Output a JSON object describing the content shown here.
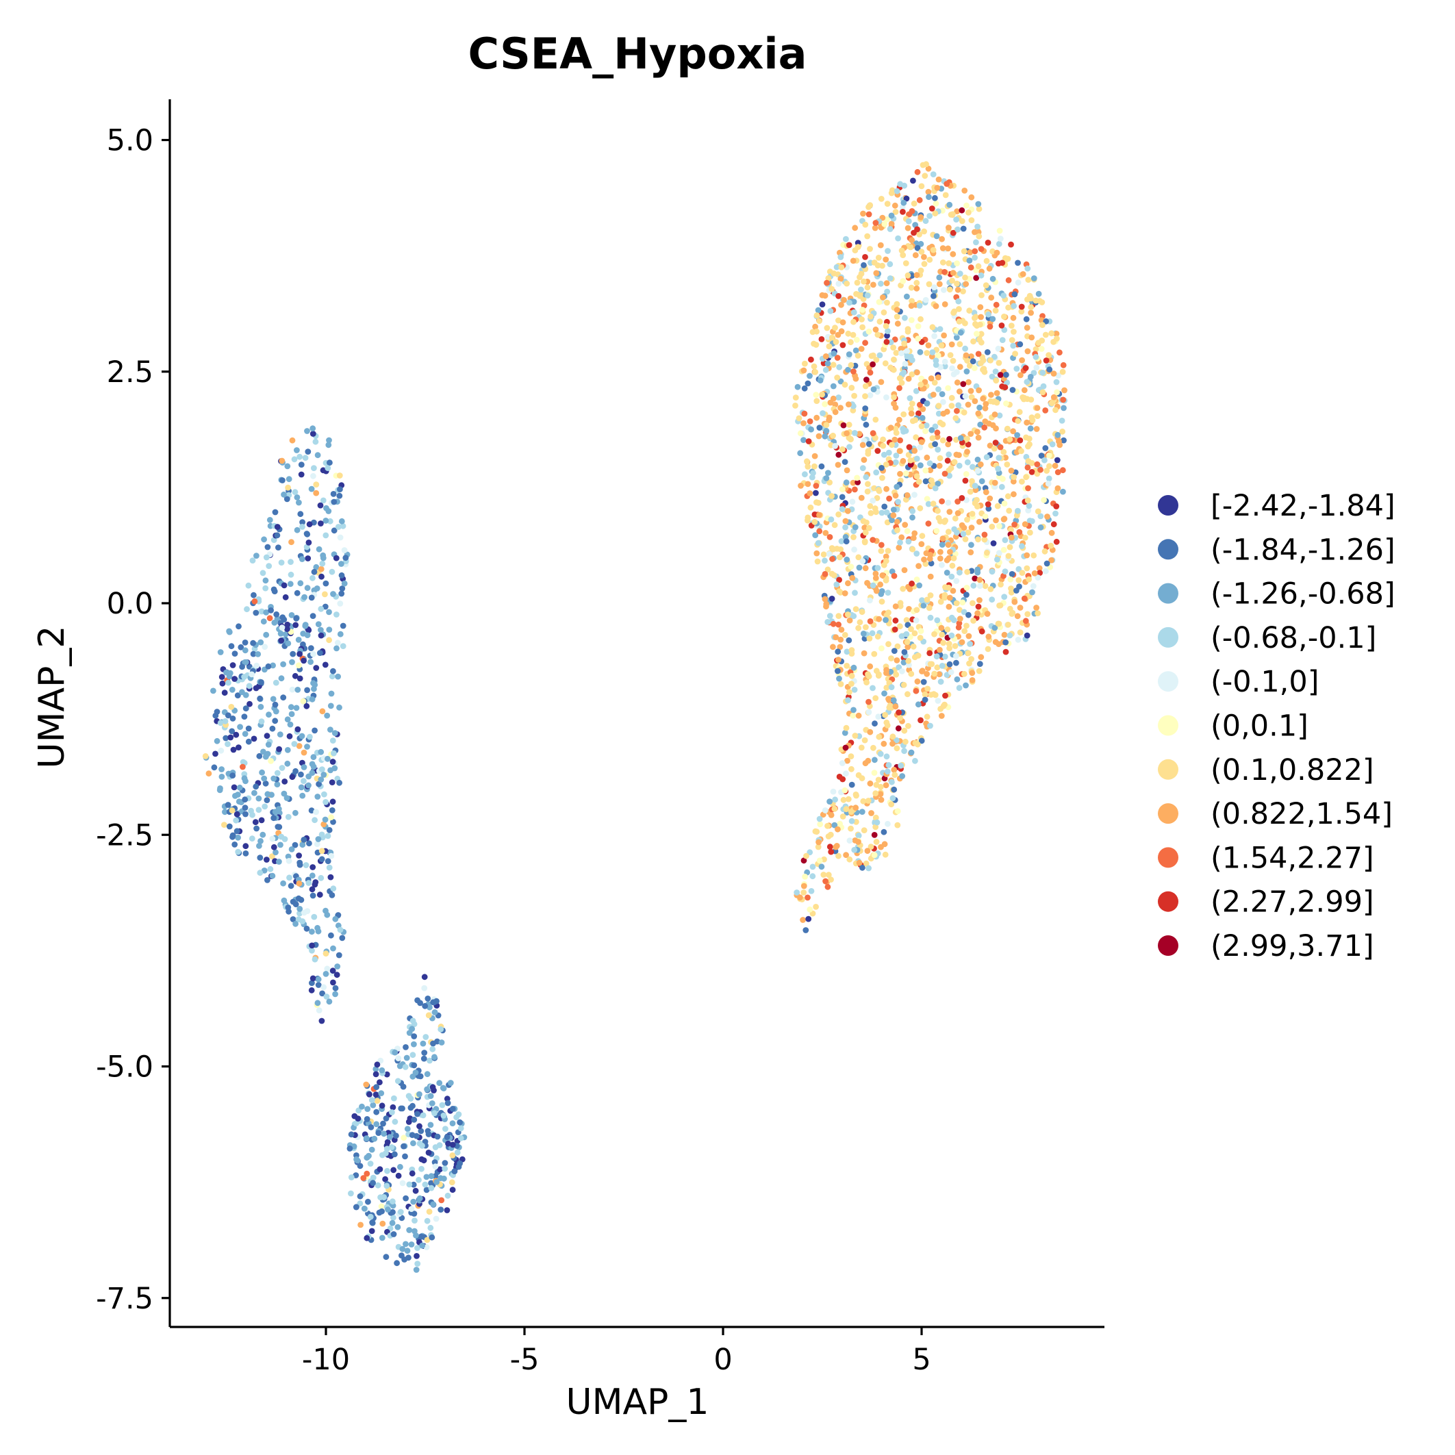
{
  "chart_data": {
    "type": "scatter",
    "title": "CSEA_Hypoxia",
    "xlabel": "UMAP_1",
    "ylabel": "UMAP_2",
    "xlim": [
      -14,
      9.6
    ],
    "ylim": [
      -7.8,
      5.45
    ],
    "x_ticks": [
      {
        "value": -10,
        "label": "-10"
      },
      {
        "value": -5,
        "label": "-5"
      },
      {
        "value": 0,
        "label": "0"
      },
      {
        "value": 5,
        "label": "5"
      }
    ],
    "y_ticks": [
      {
        "value": 5.0,
        "label": "5.0"
      },
      {
        "value": 2.5,
        "label": "2.5"
      },
      {
        "value": 0.0,
        "label": "0.0"
      },
      {
        "value": -2.5,
        "label": "-2.5"
      },
      {
        "value": -5.0,
        "label": "-5.0"
      },
      {
        "value": -7.5,
        "label": "-7.5"
      }
    ],
    "legend_position": "right",
    "legend": [
      {
        "label": "[-2.42,-1.84]",
        "color": "#313695"
      },
      {
        "label": "(-1.84,-1.26]",
        "color": "#4575b4"
      },
      {
        "label": "(-1.26,-0.68]",
        "color": "#74add1"
      },
      {
        "label": "(-0.68,-0.1]",
        "color": "#abd9e9"
      },
      {
        "label": "(-0.1,0]",
        "color": "#e0f3f8"
      },
      {
        "label": "(0,0.1]",
        "color": "#ffffbf"
      },
      {
        "label": "(0.1,0.822]",
        "color": "#fee090"
      },
      {
        "label": "(0.822,1.54]",
        "color": "#fdae61"
      },
      {
        "label": "(1.54,2.27]",
        "color": "#f46d43"
      },
      {
        "label": "(2.27,2.99]",
        "color": "#d73027"
      },
      {
        "label": "(2.99,3.71]",
        "color": "#a50026"
      }
    ],
    "clusters": [
      {
        "name": "upper-left cluster",
        "points_estimated": 700,
        "outline": [
          [
            -10.3,
            1.95
          ],
          [
            -9.9,
            1.9
          ],
          [
            -9.6,
            1.4
          ],
          [
            -9.4,
            0.8
          ],
          [
            -9.5,
            0.0
          ],
          [
            -9.6,
            -0.8
          ],
          [
            -9.5,
            -1.6
          ],
          [
            -9.75,
            -2.3
          ],
          [
            -9.85,
            -3.0
          ],
          [
            -9.5,
            -3.6
          ],
          [
            -9.8,
            -4.3
          ],
          [
            -10.2,
            -4.6
          ],
          [
            -10.6,
            -3.7
          ],
          [
            -11.2,
            -3.1
          ],
          [
            -12.1,
            -2.8
          ],
          [
            -12.8,
            -2.2
          ],
          [
            -13.1,
            -1.5
          ],
          [
            -12.9,
            -0.8
          ],
          [
            -12.2,
            0.0
          ],
          [
            -11.6,
            0.8
          ],
          [
            -11.2,
            1.5
          ],
          [
            -10.8,
            1.8
          ]
        ],
        "class_weights": [
          0.14,
          0.24,
          0.3,
          0.2,
          0.05,
          0.02,
          0.03,
          0.015,
          0.005,
          0,
          0
        ]
      },
      {
        "name": "lower-left cluster",
        "points_estimated": 420,
        "outline": [
          [
            -7.5,
            -4.0
          ],
          [
            -7.1,
            -4.4
          ],
          [
            -6.9,
            -5.1
          ],
          [
            -6.6,
            -5.6
          ],
          [
            -6.4,
            -5.8
          ],
          [
            -6.95,
            -6.6
          ],
          [
            -7.7,
            -7.2
          ],
          [
            -8.4,
            -7.1
          ],
          [
            -9.1,
            -6.8
          ],
          [
            -9.5,
            -6.2
          ],
          [
            -9.3,
            -5.4
          ],
          [
            -8.8,
            -5.0
          ],
          [
            -8.0,
            -4.7
          ],
          [
            -7.8,
            -4.3
          ]
        ],
        "class_weights": [
          0.18,
          0.27,
          0.27,
          0.17,
          0.04,
          0.02,
          0.03,
          0.01,
          0.01,
          0,
          0
        ]
      },
      {
        "name": "right cluster",
        "points_estimated": 2300,
        "outline": [
          [
            4.5,
            4.55
          ],
          [
            5.2,
            4.8
          ],
          [
            6.0,
            4.5
          ],
          [
            6.9,
            4.1
          ],
          [
            7.6,
            3.7
          ],
          [
            8.3,
            3.2
          ],
          [
            8.65,
            2.4
          ],
          [
            8.6,
            1.3
          ],
          [
            8.3,
            0.3
          ],
          [
            7.7,
            -0.4
          ],
          [
            6.9,
            -0.6
          ],
          [
            5.9,
            -1.0
          ],
          [
            5.0,
            -1.5
          ],
          [
            4.6,
            -2.1
          ],
          [
            4.2,
            -2.7
          ],
          [
            3.7,
            -2.9
          ],
          [
            3.1,
            -2.8
          ],
          [
            2.6,
            -3.1
          ],
          [
            2.1,
            -3.6
          ],
          [
            1.8,
            -3.1
          ],
          [
            2.2,
            -2.5
          ],
          [
            2.8,
            -2.0
          ],
          [
            3.1,
            -1.2
          ],
          [
            2.7,
            -0.4
          ],
          [
            2.4,
            0.4
          ],
          [
            1.9,
            1.2
          ],
          [
            1.8,
            2.2
          ],
          [
            2.2,
            3.0
          ],
          [
            2.7,
            3.6
          ],
          [
            3.2,
            4.1
          ],
          [
            3.8,
            4.4
          ]
        ],
        "class_weights": [
          0.01,
          0.04,
          0.07,
          0.15,
          0.04,
          0.04,
          0.33,
          0.2,
          0.07,
          0.04,
          0.01
        ]
      }
    ]
  }
}
